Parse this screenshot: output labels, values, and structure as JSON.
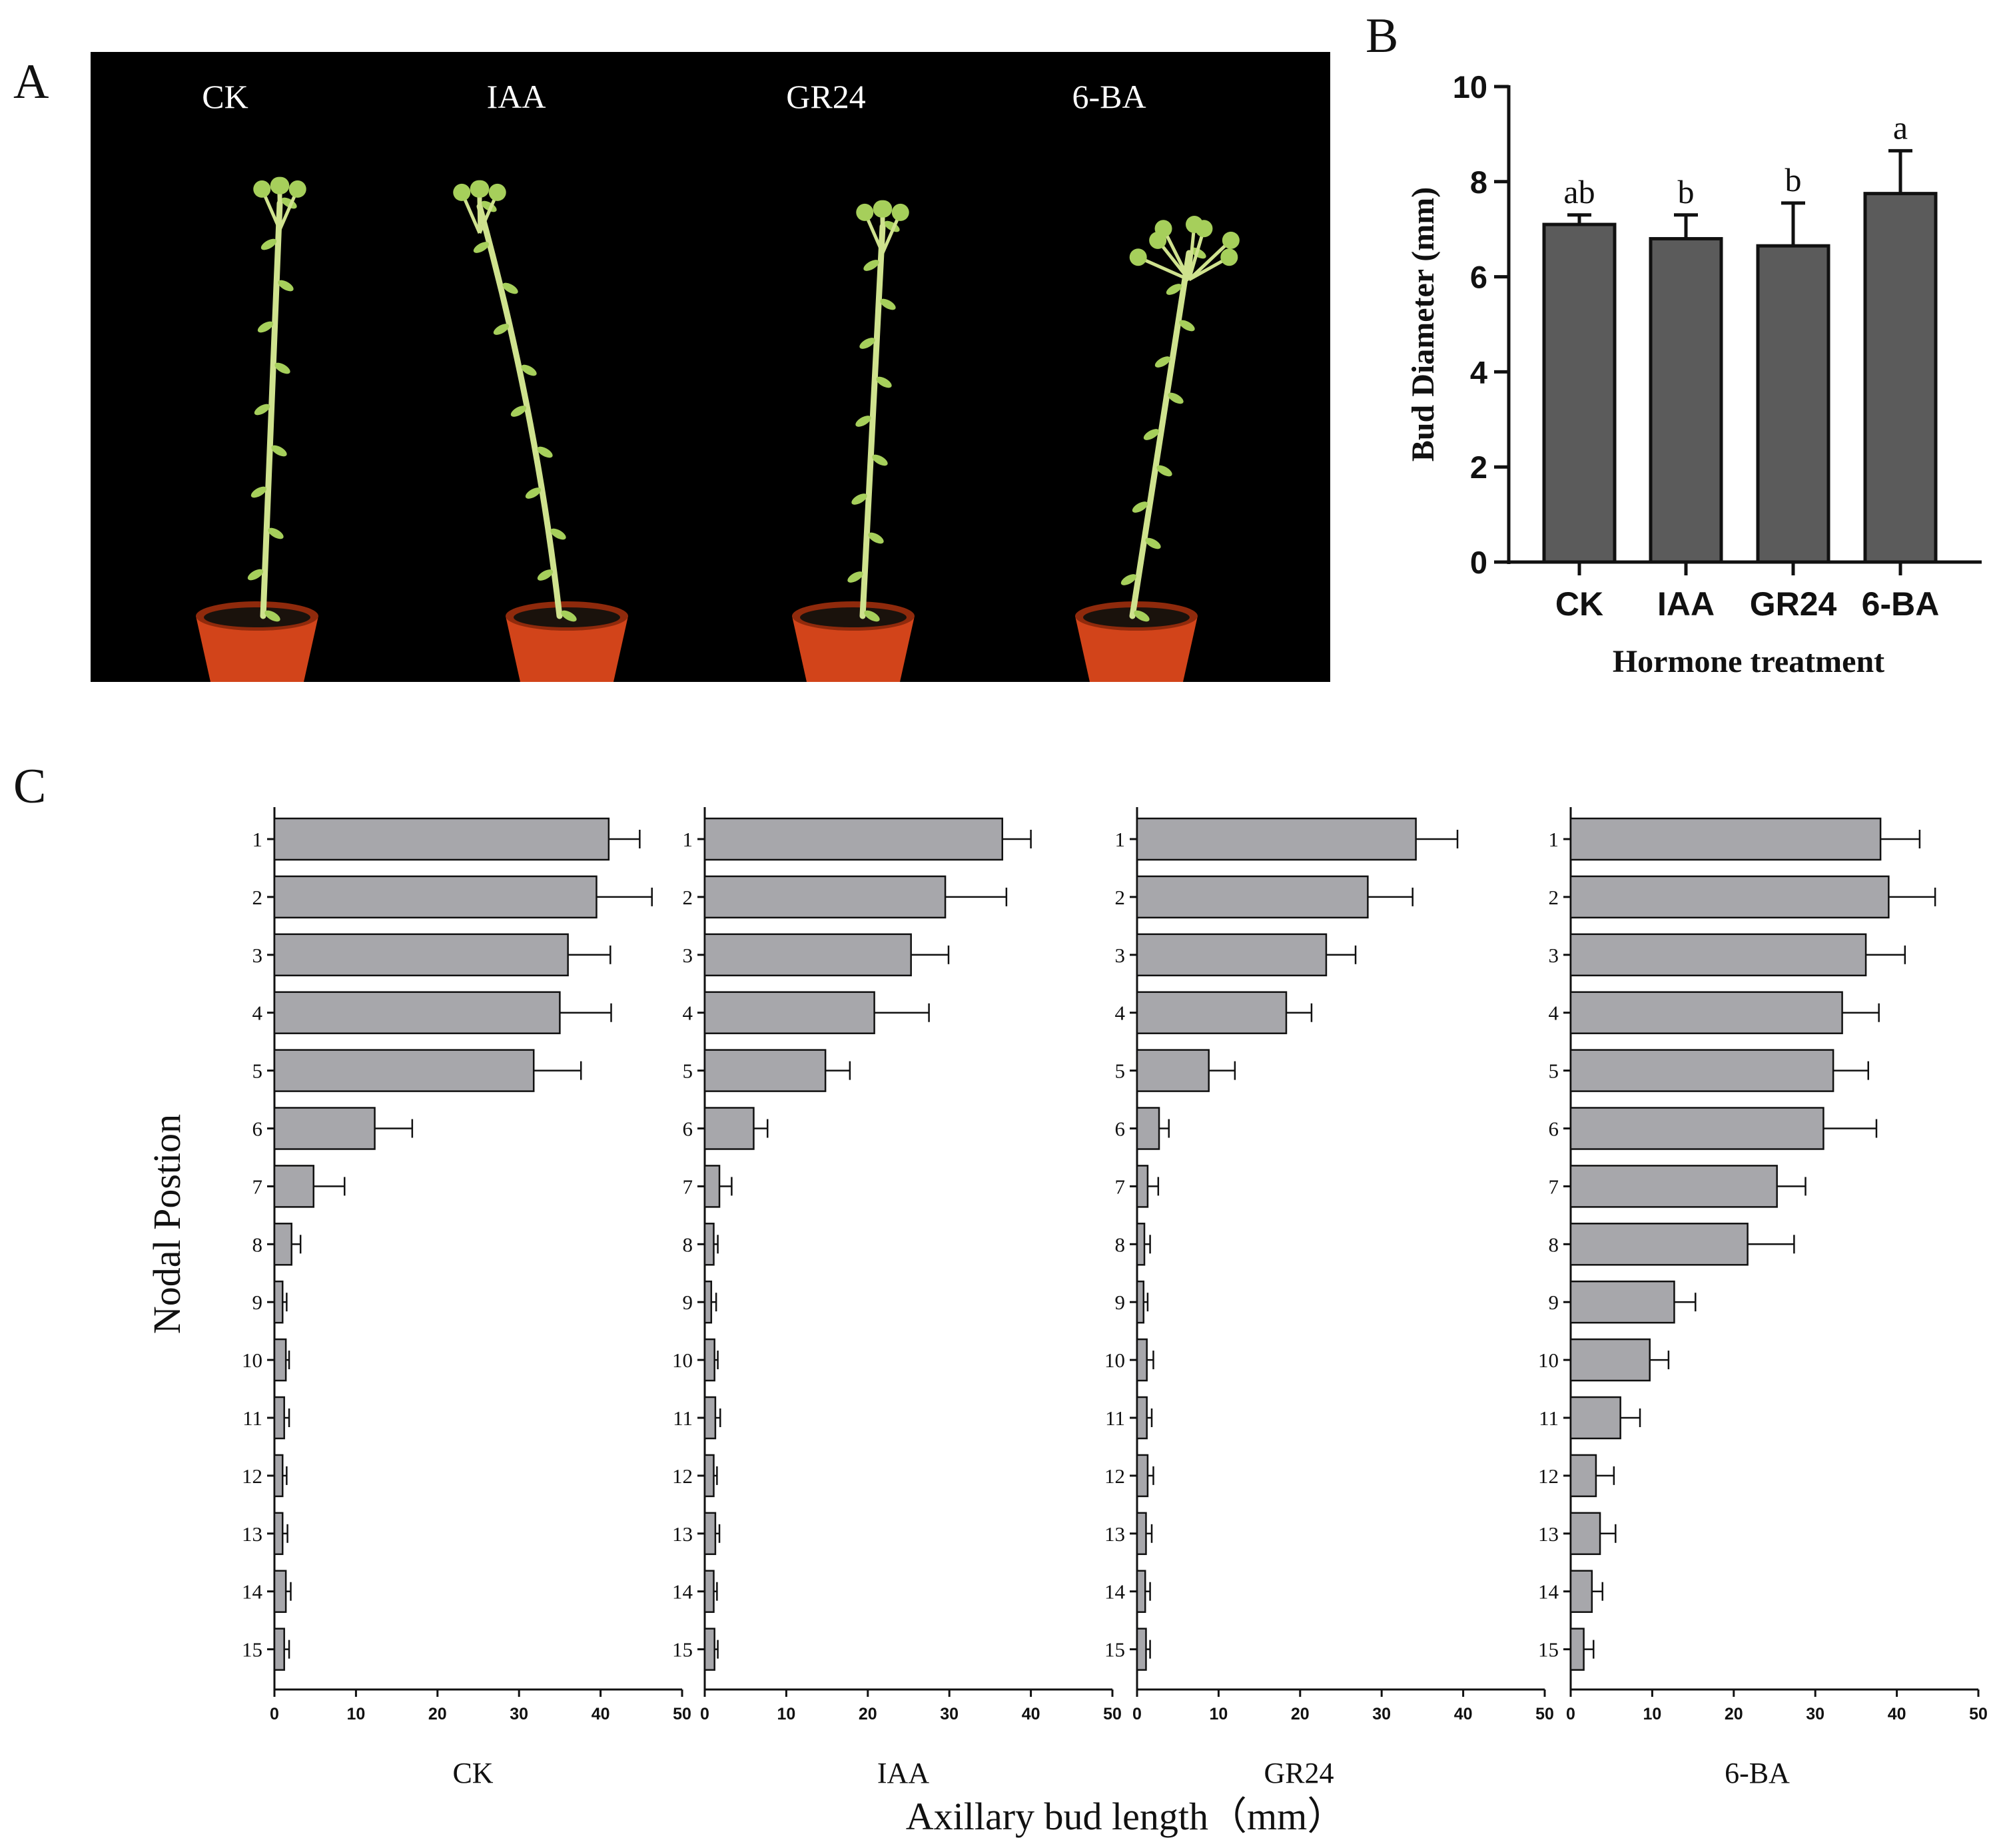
{
  "panels": {
    "a": "A",
    "b": "B",
    "c": "C"
  },
  "colors": {
    "photo_bg": "#000000",
    "bar_b": "#5b5b5b",
    "bar_c": "#a7a7ab",
    "pot": "#d2441a",
    "pot_dark": "#8f2a0c",
    "plant": "#cfe28e",
    "leaf": "#a6cf5b",
    "ink": "#111111"
  },
  "photo": {
    "labels": [
      "CK",
      "IAA",
      "GR24",
      "6-BA"
    ],
    "plants": [
      {
        "name": "CK",
        "form": "single-stem"
      },
      {
        "name": "IAA",
        "form": "single-stem"
      },
      {
        "name": "GR24",
        "form": "single-stem"
      },
      {
        "name": "6-BA",
        "form": "branched"
      }
    ]
  },
  "chart_data": [
    {
      "id": "B",
      "type": "bar",
      "title": "",
      "xlabel": "Hormone treatment",
      "ylabel": "Bud Diameter (mm)",
      "categories": [
        "CK",
        "IAA",
        "GR24",
        "6-BA"
      ],
      "values": [
        7.1,
        6.8,
        6.65,
        7.75
      ],
      "errors": [
        0.2,
        0.5,
        0.9,
        0.9
      ],
      "significance": [
        "ab",
        "b",
        "b",
        "a"
      ],
      "ylim": [
        0,
        10
      ],
      "yticks": [
        0,
        2,
        4,
        6,
        8,
        10
      ]
    },
    {
      "id": "C",
      "type": "bar",
      "orientation": "horizontal",
      "xlabel": "Axillary bud length（mm）",
      "ylabel": "Nodal Postion",
      "categories": [
        "1",
        "2",
        "3",
        "4",
        "5",
        "6",
        "7",
        "8",
        "9",
        "10",
        "11",
        "12",
        "13",
        "14",
        "15"
      ],
      "xlim": [
        0,
        50
      ],
      "xticks": [
        0,
        10,
        20,
        30,
        40,
        50
      ],
      "series": [
        {
          "name": "CK",
          "values": [
            41,
            39.5,
            36,
            35,
            31.8,
            12.3,
            4.8,
            2.1,
            1,
            1.4,
            1.2,
            1,
            1,
            1.4,
            1.2
          ],
          "errors": [
            3.8,
            6.8,
            5.2,
            6.3,
            5.8,
            4.6,
            3.8,
            1.1,
            0.5,
            0.4,
            0.6,
            0.5,
            0.6,
            0.6,
            0.6
          ]
        },
        {
          "name": "IAA",
          "values": [
            36.5,
            29.5,
            25.3,
            20.8,
            14.8,
            6,
            1.8,
            1.1,
            0.8,
            1.2,
            1.3,
            1.1,
            1.3,
            1.1,
            1.2
          ],
          "errors": [
            3.5,
            7.5,
            4.6,
            6.7,
            3,
            1.7,
            1.5,
            0.5,
            0.6,
            0.4,
            0.6,
            0.4,
            0.5,
            0.4,
            0.4
          ]
        },
        {
          "name": "GR24",
          "values": [
            34.2,
            28.3,
            23.2,
            18.3,
            8.8,
            2.7,
            1.3,
            0.9,
            0.8,
            1.2,
            1.2,
            1.3,
            1.1,
            1,
            1.1
          ],
          "errors": [
            5.1,
            5.5,
            3.6,
            3.1,
            3.2,
            1.2,
            1.3,
            0.7,
            0.5,
            0.8,
            0.6,
            0.7,
            0.7,
            0.6,
            0.5
          ]
        },
        {
          "name": "6-BA",
          "values": [
            38,
            39,
            36.2,
            33.3,
            32.2,
            31,
            25.3,
            21.7,
            12.7,
            9.7,
            6.1,
            3.1,
            3.6,
            2.6,
            1.6
          ],
          "errors": [
            4.8,
            5.7,
            4.8,
            4.5,
            4.3,
            6.5,
            3.5,
            5.7,
            2.6,
            2.3,
            2.4,
            2.2,
            1.9,
            1.3,
            1.2
          ]
        }
      ]
    }
  ]
}
